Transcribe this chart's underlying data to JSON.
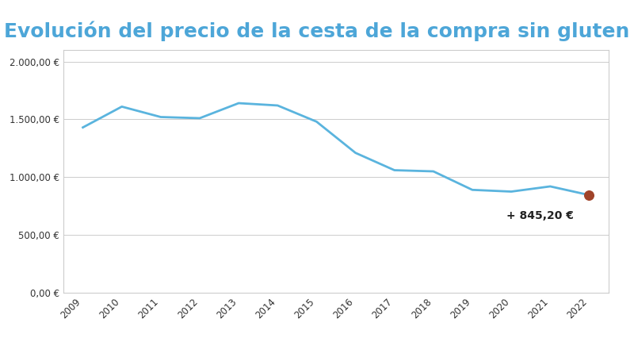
{
  "title": "Evolución del precio de la cesta de la compra sin gluten",
  "title_color": "#4da6d8",
  "years": [
    2009,
    2010,
    2011,
    2012,
    2013,
    2014,
    2015,
    2016,
    2017,
    2018,
    2019,
    2020,
    2021,
    2022
  ],
  "values": [
    1430,
    1610,
    1520,
    1510,
    1640,
    1620,
    1480,
    1210,
    1060,
    1050,
    890,
    875,
    920,
    845.2
  ],
  "line_color": "#5ab4de",
  "line_width": 2.0,
  "last_dot_color": "#a0432a",
  "last_dot_size": 70,
  "annotation_text": "+ 845,20 €",
  "annotation_fontsize": 10,
  "annotation_fontweight": "bold",
  "ylim": [
    0,
    2100
  ],
  "yticks": [
    0,
    500,
    1000,
    1500,
    2000
  ],
  "ytick_labels": [
    "0,00 €",
    "500,00 €",
    "1.000,00 €",
    "1.500,00 €",
    "2.000,00 €"
  ],
  "background_color": "#ffffff",
  "plot_bg_color": "#ffffff",
  "grid_color": "#cccccc",
  "tick_color": "#333333",
  "border_color": "#cccccc",
  "title_fontsize": 18
}
